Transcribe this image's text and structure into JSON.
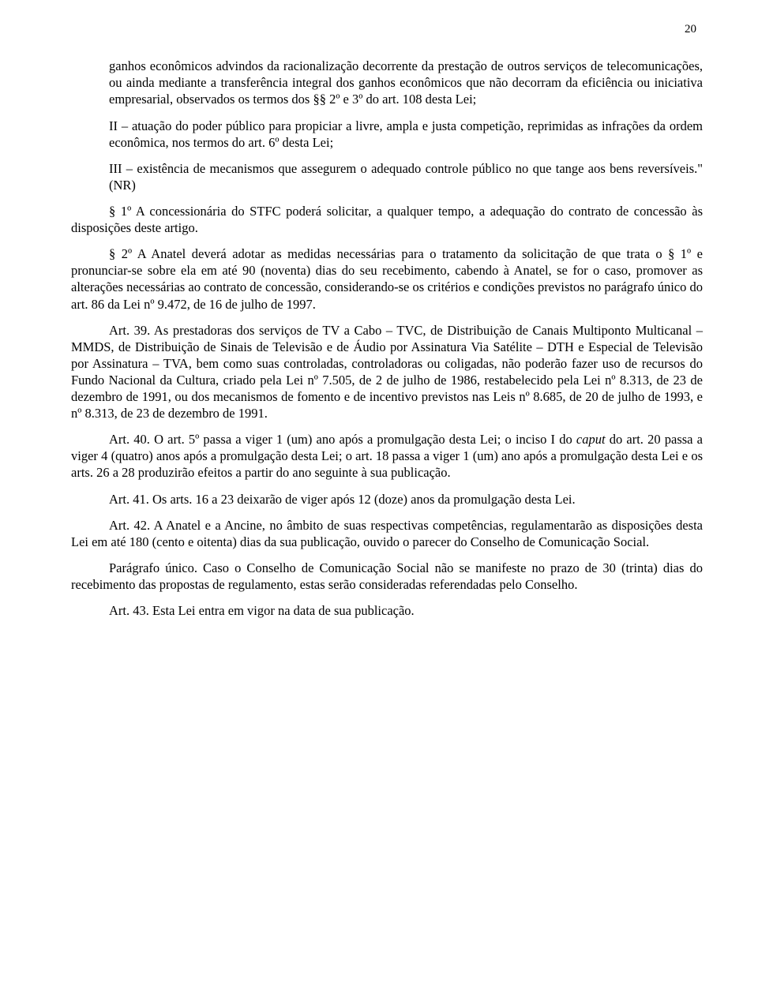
{
  "pageNumber": "20",
  "caputTail": "ganhos econômicos advindos da racionalização decorrente da prestação de outros serviços de telecomunicações, ou ainda mediante a transferência integral dos ganhos econômicos que não decorram da eficiência ou iniciativa empresarial, observados os termos dos §§ 2º e 3º do art. 108 desta Lei;",
  "inc2": "II – atuação do poder público para propiciar a livre, ampla e justa competição, reprimidas as infrações da ordem econômica, nos termos do art. 6º desta Lei;",
  "inc3": "III – existência de mecanismos que assegurem o adequado controle público no que tange aos bens reversíveis.\" (NR)",
  "p1": "§ 1º A concessionária do STFC poderá solicitar, a qualquer tempo, a adequação do contrato de concessão às disposições deste artigo.",
  "p2": "§ 2º A Anatel deverá adotar as medidas necessárias para o tratamento da solicitação de que trata o § 1º e pronunciar-se sobre ela em até 90 (noventa) dias do seu recebimento, cabendo à Anatel, se for o caso, promover as alterações necessárias ao contrato de concessão, considerando-se os critérios e condições previstos no parágrafo único do art. 86 da Lei nº 9.472, de 16 de julho de 1997.",
  "art39": "Art. 39. As prestadoras dos serviços de TV a Cabo – TVC, de Distribuição de Canais Multiponto Multicanal – MMDS, de Distribuição de Sinais de Televisão e de Áudio por Assinatura Via Satélite – DTH e Especial de Televisão por Assinatura – TVA, bem como suas controladas, controladoras ou coligadas, não poderão fazer uso de recursos do Fundo Nacional da Cultura, criado pela Lei nº 7.505, de 2 de julho de 1986, restabelecido pela Lei nº 8.313, de 23 de dezembro de 1991, ou dos mecanismos de fomento e de incentivo previstos nas Leis nº 8.685, de 20 de julho de 1993, e nº 8.313, de 23 de dezembro de 1991.",
  "art40_a": "Art. 40. O art. 5º passa a viger 1 (um) ano após a promulgação desta Lei; o inciso I do ",
  "art40_b": " do art. 20 passa a viger 4 (quatro) anos após a promulgação desta Lei; o art. 18 passa a viger 1 (um) ano após a promulgação desta Lei e os arts. 26 a 28 produzirão efeitos a partir do ano seguinte à sua publicação.",
  "caputWord": "caput",
  "art41": "Art. 41. Os arts. 16 a 23 deixarão de viger após 12 (doze) anos da promulgação desta Lei.",
  "art42": "Art. 42. A Anatel e a Ancine, no âmbito de suas respectivas competências, regulamentarão as disposições desta Lei em até 180 (cento e oitenta) dias da sua publicação, ouvido o parecer do Conselho de Comunicação Social.",
  "pu": "Parágrafo único. Caso o Conselho de Comunicação Social não se manifeste no prazo de 30 (trinta) dias do recebimento das propostas de regulamento, estas serão consideradas referendadas pelo Conselho.",
  "art43": "Art. 43. Esta Lei entra em vigor na data de sua publicação."
}
